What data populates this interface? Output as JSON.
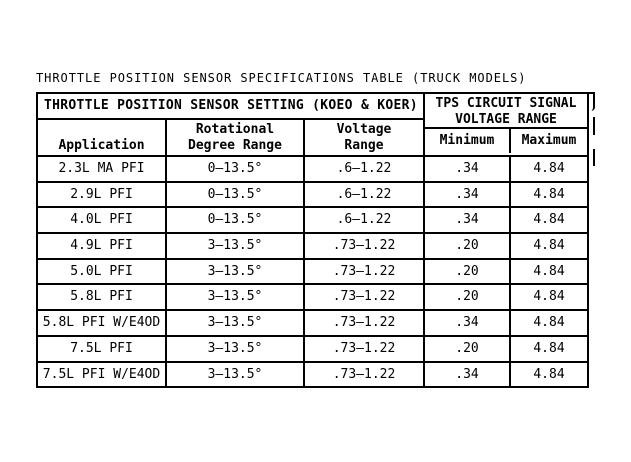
{
  "colors": {
    "background": "#ffffff",
    "text": "#000000",
    "border": "#000000"
  },
  "title": "THROTTLE POSITION SENSOR SPECIFICATIONS TABLE (TRUCK MODELS)",
  "table": {
    "section_headers": {
      "left": "THROTTLE POSITION SENSOR SETTING (KOEO & KOER)",
      "right": "TPS CIRCUIT SIGNAL\nVOLTAGE RANGE"
    },
    "column_headers": {
      "application": "Application",
      "rotational_degree_range": "Rotational\nDegree Range",
      "voltage_range": "Voltage\nRange",
      "minimum": "Minimum",
      "maximum": "Maximum"
    },
    "rows": [
      {
        "application": "2.3L MA PFI",
        "rotational_degree_range": "0–13.5°",
        "voltage_range": ".6–1.22",
        "minimum": ".34",
        "maximum": "4.84"
      },
      {
        "application": "2.9L PFI",
        "rotational_degree_range": "0–13.5°",
        "voltage_range": ".6–1.22",
        "minimum": ".34",
        "maximum": "4.84"
      },
      {
        "application": "4.0L PFI",
        "rotational_degree_range": "0–13.5°",
        "voltage_range": ".6–1.22",
        "minimum": ".34",
        "maximum": "4.84"
      },
      {
        "application": "4.9L PFI",
        "rotational_degree_range": "3–13.5°",
        "voltage_range": ".73–1.22",
        "minimum": ".20",
        "maximum": "4.84"
      },
      {
        "application": "5.0L PFI",
        "rotational_degree_range": "3–13.5°",
        "voltage_range": ".73–1.22",
        "minimum": ".20",
        "maximum": "4.84"
      },
      {
        "application": "5.8L PFI",
        "rotational_degree_range": "3–13.5°",
        "voltage_range": ".73–1.22",
        "minimum": ".20",
        "maximum": "4.84"
      },
      {
        "application": "5.8L PFI W/E4OD",
        "rotational_degree_range": "3–13.5°",
        "voltage_range": ".73–1.22",
        "minimum": ".34",
        "maximum": "4.84"
      },
      {
        "application": "7.5L PFI",
        "rotational_degree_range": "3–13.5°",
        "voltage_range": ".73–1.22",
        "minimum": ".20",
        "maximum": "4.84"
      },
      {
        "application": "7.5L PFI W/E4OD",
        "rotational_degree_range": "3–13.5°",
        "voltage_range": ".73–1.22",
        "minimum": ".34",
        "maximum": "4.84"
      }
    ]
  }
}
